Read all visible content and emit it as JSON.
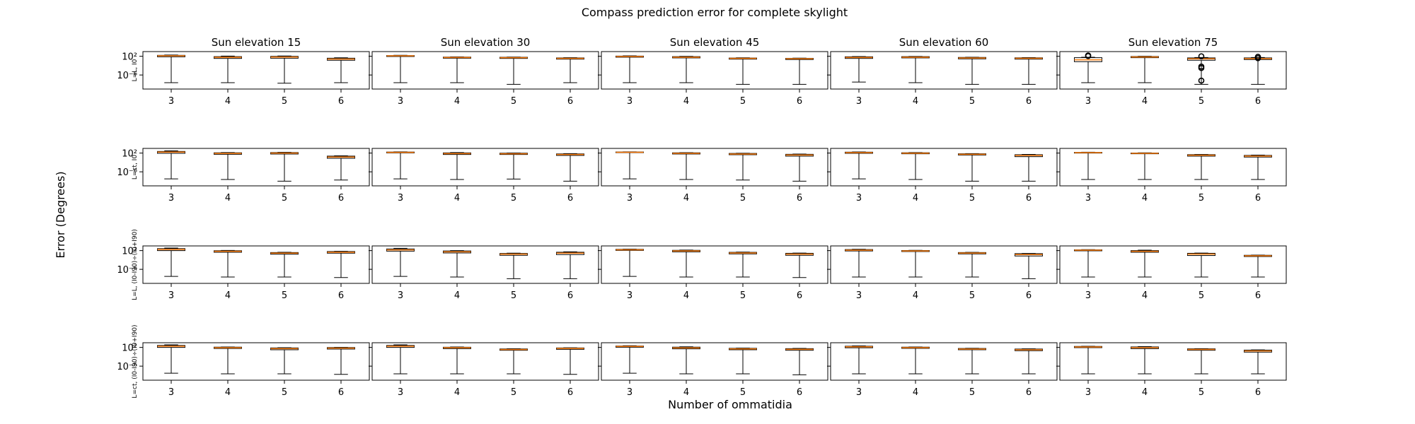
{
  "chart_data": {
    "type": "box",
    "title": "Compass prediction error for complete skylight",
    "xlabel": "Number of ommatidia",
    "ylabel": "Error (Degrees)",
    "y_scale": "log",
    "ylim": [
      1e-12,
      10000
    ],
    "y_ticks": [
      {
        "value": 100,
        "label": "10²"
      },
      {
        "value": 1e-06,
        "label": "10⁻⁶"
      }
    ],
    "grid": false,
    "categories": [
      "3",
      "4",
      "5",
      "6"
    ],
    "columns": [
      "Sun elevation 15",
      "Sun elevation 30",
      "Sun elevation 45",
      "Sun elevation 60",
      "Sun elevation 75"
    ],
    "rows": [
      "L=L, I0",
      "L=ct, I0",
      "L=L, (I0-I90)÷(I0+I90)",
      "L=ct, (I0-I90)÷(I0+I90)"
    ],
    "colors": {
      "box": "#000000",
      "median": "#ff7f0e"
    },
    "panels": [
      [
        [
          {
            "wlo": 5e-10,
            "q1": 60,
            "med": 150,
            "q3": 250,
            "whi": 350
          },
          {
            "wlo": 5e-10,
            "q1": 12,
            "med": 35,
            "q3": 70,
            "whi": 120
          },
          {
            "wlo": 3e-10,
            "q1": 15,
            "med": 45,
            "q3": 90,
            "whi": 130
          },
          {
            "wlo": 5e-10,
            "q1": 2,
            "med": 6,
            "q3": 15,
            "whi": 22
          }
        ],
        [
          {
            "wlo": 5e-10,
            "q1": 80,
            "med": 150,
            "q3": 200,
            "whi": 260
          },
          {
            "wlo": 5e-10,
            "q1": 15,
            "med": 30,
            "q3": 45,
            "whi": 55
          },
          {
            "wlo": 1e-10,
            "q1": 12,
            "med": 25,
            "q3": 38,
            "whi": 45
          },
          {
            "wlo": 5e-10,
            "q1": 6,
            "med": 12,
            "q3": 20,
            "whi": 25
          }
        ],
        [
          {
            "wlo": 5e-10,
            "q1": 40,
            "med": 80,
            "q3": 120,
            "whi": 150
          },
          {
            "wlo": 5e-10,
            "q1": 20,
            "med": 40,
            "q3": 70,
            "whi": 90
          },
          {
            "wlo": 1e-10,
            "q1": 6,
            "med": 12,
            "q3": 18,
            "whi": 22
          },
          {
            "wlo": 1e-10,
            "q1": 4,
            "med": 8,
            "q3": 13,
            "whi": 16
          }
        ],
        [
          {
            "wlo": 1e-09,
            "q1": 12,
            "med": 30,
            "q3": 60,
            "whi": 80
          },
          {
            "wlo": 5e-10,
            "q1": 20,
            "med": 40,
            "q3": 70,
            "whi": 85
          },
          {
            "wlo": 1e-10,
            "q1": 8,
            "med": 18,
            "q3": 32,
            "whi": 40
          },
          {
            "wlo": 1e-10,
            "q1": 6,
            "med": 13,
            "q3": 22,
            "whi": 28
          }
        ],
        [
          {
            "wlo": 5e-10,
            "q1": 0.5,
            "med": 3,
            "q3": 25,
            "whi": 40,
            "fliers": [
              120,
              240
            ]
          },
          {
            "wlo": 5e-10,
            "q1": 25,
            "med": 50,
            "q3": 80,
            "whi": 100
          },
          {
            "wlo": 1e-10,
            "q1": 2,
            "med": 8,
            "q3": 20,
            "whi": 30,
            "fliers": [
              100,
              0.004,
              0.001,
              4e-09
            ]
          },
          {
            "wlo": 1e-10,
            "q1": 4,
            "med": 10,
            "q3": 20,
            "whi": 30,
            "fliers": [
              60,
              15
            ]
          }
        ]
      ],
      [
        [
          {
            "wlo": 1e-09,
            "q1": 80,
            "med": 250,
            "q3": 500,
            "whi": 1000
          },
          {
            "wlo": 5e-10,
            "q1": 30,
            "med": 70,
            "q3": 130,
            "whi": 170
          },
          {
            "wlo": 1e-10,
            "q1": 40,
            "med": 100,
            "q3": 170,
            "whi": 220
          },
          {
            "wlo": 3e-10,
            "q1": 0.6,
            "med": 2,
            "q3": 5,
            "whi": 7
          }
        ],
        [
          {
            "wlo": 1e-09,
            "q1": 120,
            "med": 200,
            "q3": 280,
            "whi": 350
          },
          {
            "wlo": 5e-10,
            "q1": 25,
            "med": 60,
            "q3": 120,
            "whi": 170
          },
          {
            "wlo": 8e-10,
            "q1": 25,
            "med": 50,
            "q3": 90,
            "whi": 110
          },
          {
            "wlo": 1e-10,
            "q1": 10,
            "med": 25,
            "q3": 45,
            "whi": 60
          }
        ],
        [
          {
            "wlo": 1e-09,
            "q1": 150,
            "med": 220,
            "q3": 300,
            "whi": 350
          },
          {
            "wlo": 5e-10,
            "q1": 40,
            "med": 80,
            "q3": 130,
            "whi": 160
          },
          {
            "wlo": 3e-10,
            "q1": 20,
            "med": 40,
            "q3": 70,
            "whi": 85
          },
          {
            "wlo": 1e-10,
            "q1": 5,
            "med": 15,
            "q3": 30,
            "whi": 40
          }
        ],
        [
          {
            "wlo": 1e-09,
            "q1": 80,
            "med": 150,
            "q3": 250,
            "whi": 320
          },
          {
            "wlo": 5e-10,
            "q1": 50,
            "med": 90,
            "q3": 140,
            "whi": 170
          },
          {
            "wlo": 1e-10,
            "q1": 15,
            "med": 30,
            "q3": 50,
            "whi": 60
          },
          {
            "wlo": 1e-10,
            "q1": 3,
            "med": 10,
            "q3": 20,
            "whi": 28
          }
        ],
        [
          {
            "wlo": 5e-10,
            "q1": 100,
            "med": 150,
            "q3": 200,
            "whi": 240
          },
          {
            "wlo": 5e-10,
            "q1": 50,
            "med": 80,
            "q3": 110,
            "whi": 130
          },
          {
            "wlo": 5e-10,
            "q1": 5,
            "med": 12,
            "q3": 22,
            "whi": 28
          },
          {
            "wlo": 5e-10,
            "q1": 2,
            "med": 5,
            "q3": 10,
            "whi": 13
          }
        ]
      ],
      [
        [
          {
            "wlo": 1e-09,
            "q1": 100,
            "med": 300,
            "q3": 700,
            "whi": 1200
          },
          {
            "wlo": 5e-10,
            "q1": 20,
            "med": 50,
            "q3": 90,
            "whi": 120
          },
          {
            "wlo": 5e-10,
            "q1": 3,
            "med": 8,
            "q3": 15,
            "whi": 20
          },
          {
            "wlo": 3e-10,
            "q1": 8,
            "med": 20,
            "q3": 40,
            "whi": 50
          }
        ],
        [
          {
            "wlo": 1e-09,
            "q1": 60,
            "med": 200,
            "q3": 500,
            "whi": 1000
          },
          {
            "wlo": 5e-10,
            "q1": 10,
            "med": 30,
            "q3": 70,
            "whi": 100
          },
          {
            "wlo": 1e-10,
            "q1": 1,
            "med": 3,
            "q3": 6,
            "whi": 8
          },
          {
            "wlo": 1e-10,
            "q1": 2,
            "med": 8,
            "q3": 20,
            "whi": 30
          }
        ],
        [
          {
            "wlo": 1e-09,
            "q1": 120,
            "med": 220,
            "q3": 350,
            "whi": 420
          },
          {
            "wlo": 5e-10,
            "q1": 30,
            "med": 70,
            "q3": 130,
            "whi": 170
          },
          {
            "wlo": 5e-10,
            "q1": 4,
            "med": 10,
            "q3": 18,
            "whi": 22
          },
          {
            "wlo": 3e-10,
            "q1": 1,
            "med": 3,
            "q3": 7,
            "whi": 9
          }
        ],
        [
          {
            "wlo": 5e-10,
            "q1": 70,
            "med": 150,
            "q3": 280,
            "whi": 360
          },
          {
            "wlo": 5e-10,
            "q1": 40,
            "med": 70,
            "q3": 110,
            "whi": 130
          },
          {
            "wlo": 5e-10,
            "q1": 4,
            "med": 9,
            "q3": 15,
            "whi": 18
          },
          {
            "wlo": 1e-10,
            "q1": 0.5,
            "med": 2,
            "q3": 5,
            "whi": 6
          }
        ],
        [
          {
            "wlo": 5e-10,
            "q1": 80,
            "med": 150,
            "q3": 220,
            "whi": 260
          },
          {
            "wlo": 5e-10,
            "q1": 20,
            "med": 50,
            "q3": 100,
            "whi": 150
          },
          {
            "wlo": 5e-10,
            "q1": 0.8,
            "med": 3,
            "q3": 7,
            "whi": 9
          },
          {
            "wlo": 5e-10,
            "q1": 0.3,
            "med": 0.6,
            "q3": 1,
            "whi": 1.2
          }
        ]
      ],
      [
        [
          {
            "wlo": 1e-09,
            "q1": 100,
            "med": 300,
            "q3": 700,
            "whi": 1200
          },
          {
            "wlo": 5e-10,
            "q1": 35,
            "med": 70,
            "q3": 130,
            "whi": 160
          },
          {
            "wlo": 5e-10,
            "q1": 10,
            "med": 30,
            "q3": 60,
            "whi": 80
          },
          {
            "wlo": 3e-10,
            "q1": 20,
            "med": 50,
            "q3": 90,
            "whi": 110
          }
        ],
        [
          {
            "wlo": 5e-10,
            "q1": 100,
            "med": 300,
            "q3": 700,
            "whi": 1200
          },
          {
            "wlo": 5e-10,
            "q1": 30,
            "med": 70,
            "q3": 120,
            "whi": 150
          },
          {
            "wlo": 5e-10,
            "q1": 6,
            "med": 12,
            "q3": 22,
            "whi": 28
          },
          {
            "wlo": 3e-10,
            "q1": 15,
            "med": 35,
            "q3": 60,
            "whi": 70
          }
        ],
        [
          {
            "wlo": 1e-09,
            "q1": 120,
            "med": 250,
            "q3": 400,
            "whi": 500
          },
          {
            "wlo": 5e-10,
            "q1": 25,
            "med": 60,
            "q3": 130,
            "whi": 180
          },
          {
            "wlo": 5e-10,
            "q1": 10,
            "med": 22,
            "q3": 40,
            "whi": 50
          },
          {
            "wlo": 2e-10,
            "q1": 6,
            "med": 15,
            "q3": 30,
            "whi": 40
          }
        ],
        [
          {
            "wlo": 5e-10,
            "q1": 70,
            "med": 180,
            "q3": 320,
            "whi": 420
          },
          {
            "wlo": 5e-10,
            "q1": 40,
            "med": 80,
            "q3": 130,
            "whi": 160
          },
          {
            "wlo": 5e-10,
            "q1": 10,
            "med": 20,
            "q3": 35,
            "whi": 42
          },
          {
            "wlo": 5e-10,
            "q1": 4,
            "med": 10,
            "q3": 20,
            "whi": 26
          }
        ],
        [
          {
            "wlo": 5e-10,
            "q1": 80,
            "med": 160,
            "q3": 260,
            "whi": 320
          },
          {
            "wlo": 5e-10,
            "q1": 30,
            "med": 80,
            "q3": 160,
            "whi": 220
          },
          {
            "wlo": 5e-10,
            "q1": 6,
            "med": 14,
            "q3": 25,
            "whi": 30
          },
          {
            "wlo": 5e-10,
            "q1": 1,
            "med": 3,
            "q3": 7,
            "whi": 9
          }
        ]
      ]
    ]
  }
}
